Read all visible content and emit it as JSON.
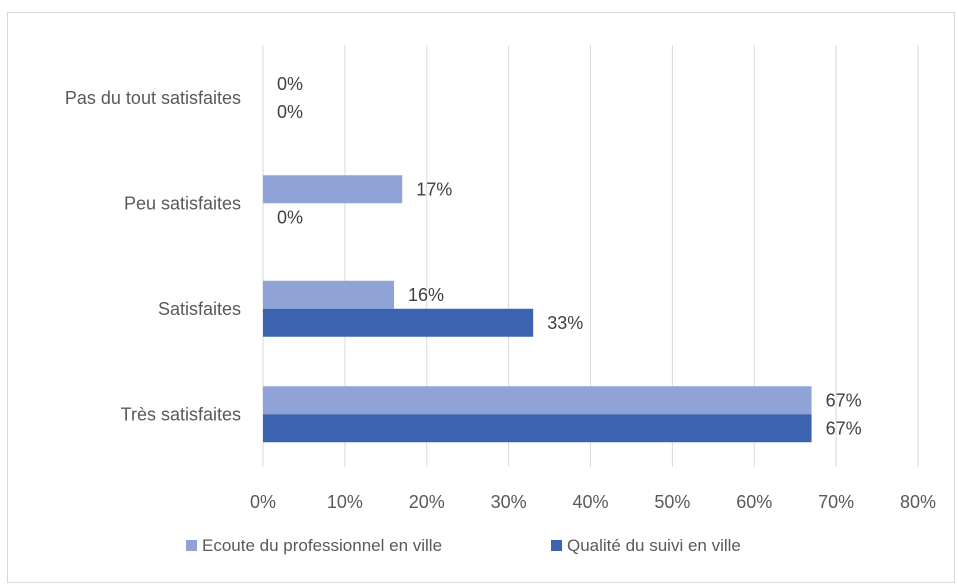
{
  "chart_data": {
    "type": "bar",
    "orientation": "horizontal",
    "categories": [
      "Pas du tout satisfaites",
      "Peu satisfaites",
      "Satisfaites",
      "Très satisfaites"
    ],
    "series": [
      {
        "name": "Ecoute du professionnel en ville",
        "values": [
          0,
          17,
          16,
          67
        ],
        "labels": [
          "0%",
          "17%",
          "16%",
          "67%"
        ],
        "color": "#8FA3D6"
      },
      {
        "name": "Qualité du suivi en ville",
        "values": [
          0,
          0,
          33,
          67
        ],
        "labels": [
          "0%",
          "0%",
          "33%",
          "67%"
        ],
        "color": "#3B63B0"
      }
    ],
    "xlim": [
      0,
      80
    ],
    "xticks": [
      "0%",
      "10%",
      "20%",
      "30%",
      "40%",
      "50%",
      "60%",
      "70%",
      "80%"
    ],
    "grid": true,
    "gridline_color": "#d9d9d9",
    "legend_position": "bottom"
  }
}
